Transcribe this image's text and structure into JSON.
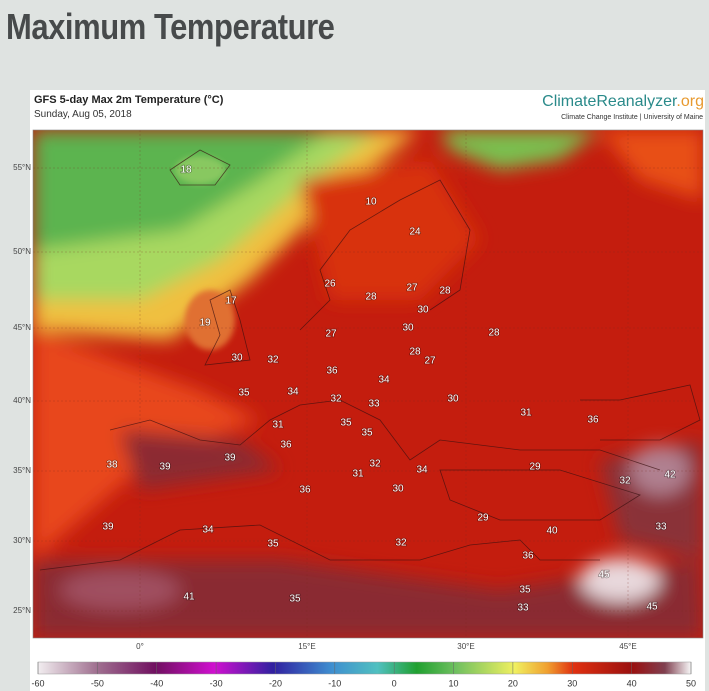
{
  "header": {
    "title": "Maximum Temperature"
  },
  "map": {
    "title": "GFS 5-day Max 2m Temperature (°C)",
    "date": "Sunday, Aug 05, 2018",
    "brand": {
      "name": "ClimateReanalyzer",
      "suffix": ".org"
    },
    "credit": "Climate Change Institute | University of Maine",
    "lat_labels": [
      "55°N",
      "50°N",
      "45°N",
      "40°N",
      "35°N",
      "30°N",
      "25°N"
    ],
    "lon_labels": [
      "0°",
      "15°E",
      "30°E",
      "45°E"
    ],
    "temperature_labels": [
      "18",
      "10",
      "24",
      "26",
      "28",
      "27",
      "28",
      "17",
      "30",
      "19",
      "30",
      "27",
      "28",
      "28",
      "27",
      "30",
      "32",
      "36",
      "34",
      "35",
      "34",
      "32",
      "33",
      "30",
      "31",
      "36",
      "35",
      "31",
      "35",
      "36",
      "38",
      "39",
      "39",
      "32",
      "31",
      "34",
      "29",
      "42",
      "32",
      "36",
      "30",
      "39",
      "34",
      "29",
      "40",
      "33",
      "35",
      "32",
      "36",
      "41",
      "35",
      "35",
      "33",
      "45",
      "45"
    ]
  },
  "colorbar": {
    "range": [
      -60,
      50
    ],
    "ticks": [
      -60,
      -50,
      -40,
      -30,
      -20,
      -10,
      0,
      10,
      20,
      30,
      40,
      50
    ]
  }
}
